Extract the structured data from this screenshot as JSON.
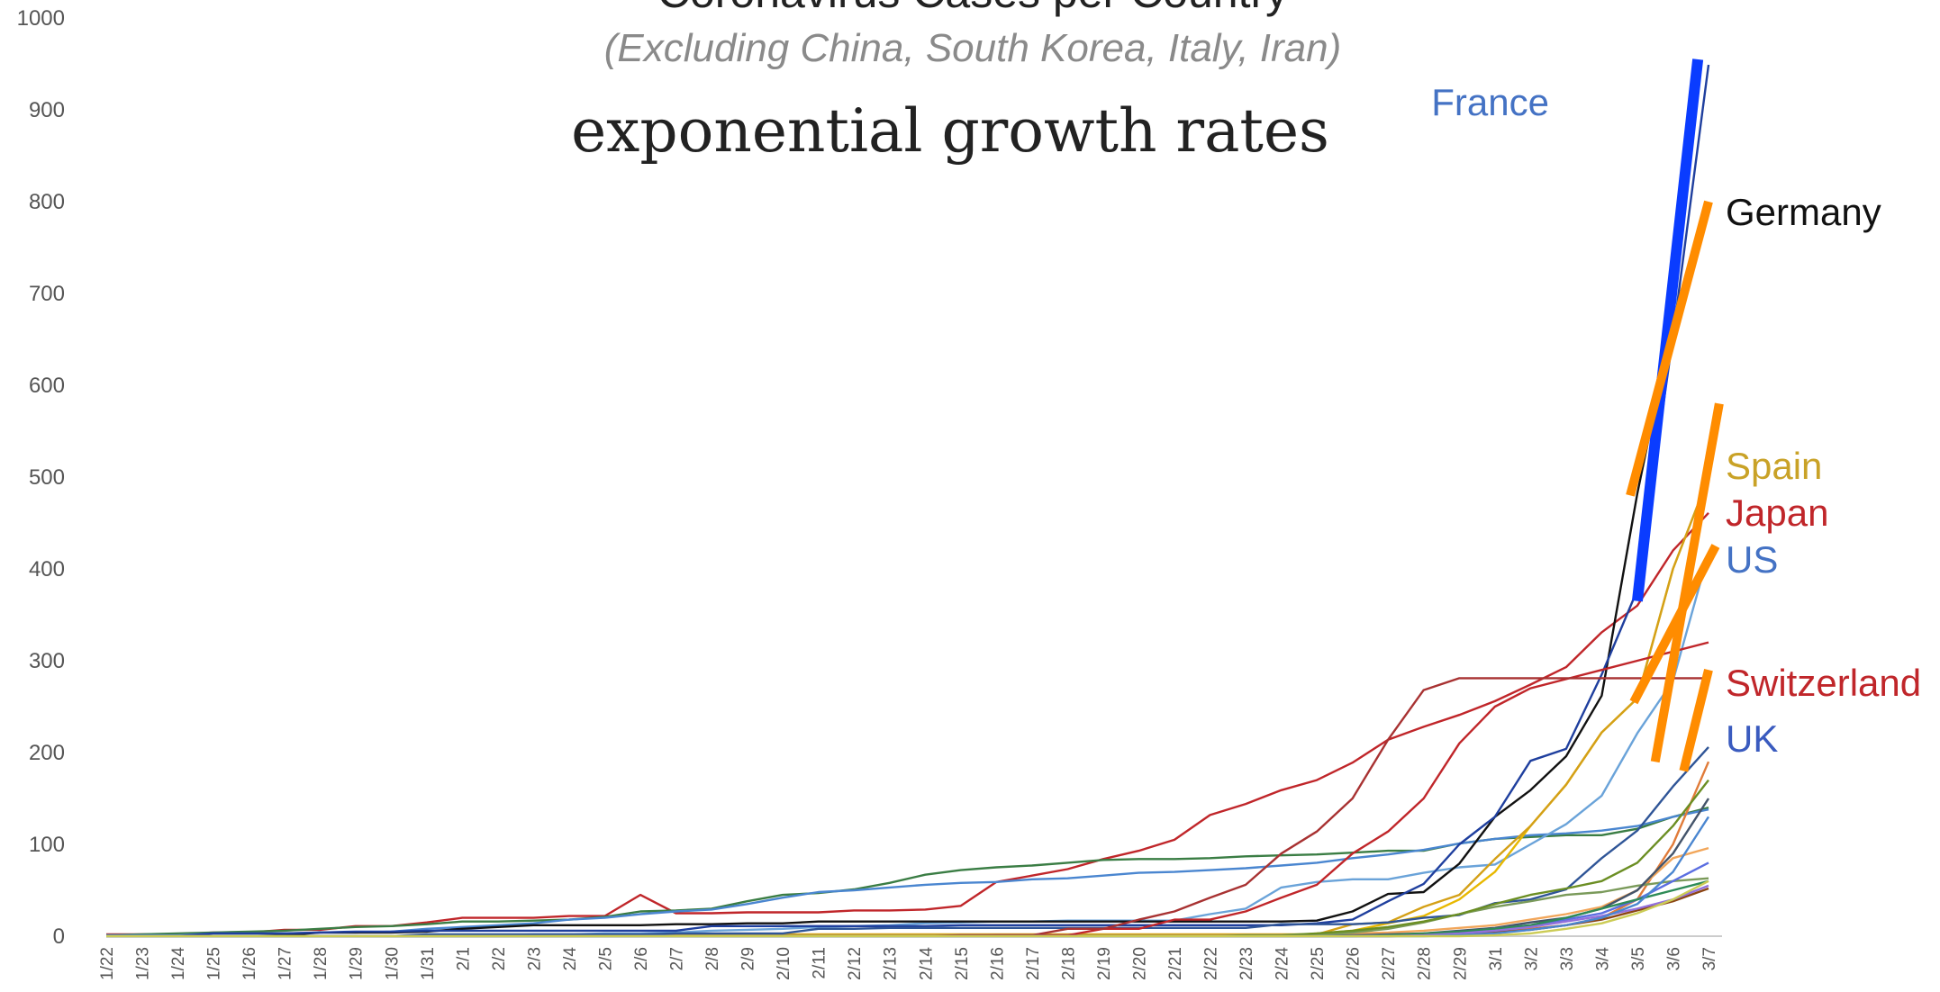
{
  "chart_data": {
    "type": "line",
    "title": "Coronavirus Cases per Country",
    "subtitle": "(Excluding China, South Korea, Italy, Iran)",
    "annotation": "exponential growth rates",
    "xlabel": "",
    "ylabel": "",
    "ylim": [
      0,
      1000
    ],
    "yticks": [
      0,
      100,
      200,
      300,
      400,
      500,
      600,
      700,
      800,
      900,
      1000
    ],
    "grid": false,
    "legend": "none",
    "categories": [
      "1/22",
      "1/23",
      "1/24",
      "1/25",
      "1/26",
      "1/27",
      "1/28",
      "1/29",
      "1/30",
      "1/31",
      "2/1",
      "2/2",
      "2/3",
      "2/4",
      "2/5",
      "2/6",
      "2/7",
      "2/8",
      "2/9",
      "2/10",
      "2/11",
      "2/12",
      "2/13",
      "2/14",
      "2/15",
      "2/16",
      "2/17",
      "2/18",
      "2/19",
      "2/20",
      "2/21",
      "2/22",
      "2/23",
      "2/24",
      "2/25",
      "2/26",
      "2/27",
      "2/28",
      "2/29",
      "3/1",
      "3/2",
      "3/3",
      "3/4",
      "3/5",
      "3/6",
      "3/7"
    ],
    "labeled_series": [
      {
        "name": "France",
        "color": "#4472c4"
      },
      {
        "name": "Germany",
        "color": "#111111"
      },
      {
        "name": "Spain",
        "color": "#c9a227"
      },
      {
        "name": "Japan",
        "color": "#c0262a"
      },
      {
        "name": "US",
        "color": "#4472c4"
      },
      {
        "name": "Switzerland",
        "color": "#c0262a"
      },
      {
        "name": "UK",
        "color": "#3a5bbf"
      }
    ],
    "series": [
      {
        "color": "#c0262a",
        "values": [
          2,
          2,
          2,
          4,
          4,
          7,
          7,
          11,
          11,
          15,
          20,
          20,
          20,
          22,
          22,
          45,
          25,
          25,
          26,
          26,
          26,
          28,
          28,
          29,
          33,
          59,
          66,
          73,
          84,
          93,
          105,
          132,
          144,
          159,
          170,
          189,
          214,
          228,
          241,
          256,
          274,
          293,
          331,
          360,
          420,
          461
        ]
      },
      {
        "color": "#3a7d44",
        "values": [
          1,
          2,
          3,
          4,
          5,
          6,
          8,
          10,
          11,
          13,
          16,
          16,
          17,
          18,
          21,
          27,
          28,
          30,
          38,
          45,
          47,
          51,
          58,
          67,
          72,
          75,
          77,
          80,
          83,
          84,
          84,
          85,
          87,
          88,
          89,
          91,
          93,
          93,
          101,
          106,
          108,
          110,
          110,
          117,
          130,
          140
        ]
      },
      {
        "color": "#4a86d0",
        "values": [
          1,
          1,
          1,
          3,
          3,
          3,
          4,
          4,
          5,
          8,
          10,
          12,
          14,
          18,
          20,
          24,
          27,
          29,
          35,
          42,
          48,
          50,
          53,
          56,
          58,
          59,
          62,
          63,
          66,
          69,
          70,
          72,
          74,
          77,
          80,
          85,
          89,
          94,
          101,
          106,
          110,
          112,
          115,
          120,
          130,
          138
        ]
      },
      {
        "color": "#6aa3d9",
        "values": [
          0,
          0,
          0,
          0,
          0,
          0,
          0,
          0,
          0,
          0,
          1,
          1,
          2,
          2,
          3,
          3,
          4,
          6,
          7,
          8,
          10,
          11,
          12,
          14,
          15,
          16,
          16,
          17,
          17,
          17,
          17,
          24,
          30,
          53,
          59,
          62,
          62,
          69,
          75,
          78,
          100,
          122,
          153,
          221,
          278,
          417
        ]
      },
      {
        "color": "#e8b800",
        "values": [
          0,
          0,
          0,
          0,
          0,
          0,
          0,
          0,
          0,
          0,
          0,
          0,
          0,
          0,
          0,
          0,
          0,
          0,
          0,
          0,
          0,
          0,
          0,
          0,
          0,
          0,
          0,
          0,
          0,
          0,
          0,
          0,
          0,
          0,
          3,
          6,
          14,
          22,
          40,
          70,
          120,
          165,
          222,
          259,
          400,
          500
        ]
      },
      {
        "color": "#d4a017",
        "values": [
          0,
          0,
          0,
          0,
          0,
          0,
          0,
          0,
          0,
          0,
          1,
          1,
          1,
          1,
          1,
          1,
          1,
          2,
          2,
          2,
          2,
          2,
          2,
          2,
          2,
          2,
          2,
          2,
          2,
          2,
          2,
          2,
          2,
          2,
          2,
          13,
          15,
          32,
          45,
          84,
          120,
          165,
          222,
          259,
          400,
          500
        ]
      },
      {
        "color": "#111111",
        "values": [
          0,
          0,
          0,
          0,
          0,
          1,
          4,
          4,
          4,
          5,
          8,
          10,
          12,
          12,
          12,
          12,
          13,
          13,
          14,
          14,
          16,
          16,
          16,
          16,
          16,
          16,
          16,
          16,
          16,
          16,
          16,
          16,
          16,
          16,
          17,
          27,
          46,
          48,
          79,
          130,
          159,
          196,
          262,
          482,
          670,
          799
        ]
      },
      {
        "color": "#1f3f9e",
        "values": [
          0,
          0,
          0,
          3,
          3,
          3,
          4,
          5,
          5,
          6,
          6,
          6,
          6,
          6,
          6,
          6,
          6,
          11,
          11,
          11,
          11,
          11,
          11,
          11,
          12,
          12,
          12,
          12,
          12,
          12,
          12,
          12,
          12,
          12,
          14,
          18,
          38,
          57,
          100,
          130,
          191,
          204,
          285,
          377,
          653,
          949
        ]
      },
      {
        "color": "#2f5597",
        "values": [
          0,
          0,
          0,
          0,
          0,
          0,
          0,
          0,
          0,
          2,
          2,
          2,
          2,
          2,
          2,
          2,
          3,
          3,
          3,
          3,
          8,
          8,
          9,
          9,
          9,
          9,
          9,
          9,
          9,
          9,
          9,
          9,
          9,
          13,
          13,
          13,
          15,
          20,
          23,
          36,
          40,
          51,
          85,
          115,
          163,
          206
        ]
      },
      {
        "color": "#c0262a",
        "values": [
          0,
          0,
          0,
          0,
          0,
          0,
          0,
          0,
          0,
          0,
          0,
          0,
          0,
          0,
          0,
          0,
          0,
          0,
          0,
          0,
          0,
          0,
          0,
          0,
          0,
          1,
          1,
          1,
          8,
          8,
          18,
          18,
          27,
          42,
          56,
          90,
          114,
          150,
          210,
          250,
          270,
          280,
          290,
          300,
          310,
          320
        ]
      },
      {
        "color": "#a83232",
        "values": [
          0,
          0,
          0,
          0,
          0,
          0,
          0,
          0,
          0,
          0,
          0,
          0,
          0,
          0,
          0,
          0,
          0,
          0,
          0,
          0,
          0,
          0,
          0,
          0,
          1,
          1,
          1,
          8,
          8,
          18,
          27,
          42,
          56,
          90,
          114,
          150,
          214,
          268,
          281,
          281,
          281,
          281,
          281,
          281,
          281,
          281
        ]
      },
      {
        "color": "#e07b39",
        "values": [
          0,
          0,
          0,
          0,
          0,
          0,
          0,
          0,
          0,
          0,
          0,
          0,
          0,
          0,
          0,
          0,
          0,
          0,
          0,
          0,
          0,
          0,
          0,
          0,
          0,
          0,
          0,
          0,
          0,
          0,
          0,
          0,
          0,
          1,
          1,
          1,
          1,
          2,
          3,
          5,
          8,
          12,
          20,
          40,
          100,
          190
        ]
      },
      {
        "color": "#f2a65a",
        "values": [
          0,
          0,
          0,
          0,
          0,
          0,
          0,
          0,
          0,
          0,
          0,
          0,
          0,
          0,
          0,
          0,
          0,
          0,
          0,
          0,
          0,
          0,
          0,
          0,
          0,
          0,
          0,
          0,
          0,
          0,
          0,
          0,
          1,
          1,
          2,
          3,
          4,
          6,
          9,
          12,
          18,
          24,
          32,
          50,
          85,
          96
        ]
      },
      {
        "color": "#7a9a5a",
        "values": [
          0,
          0,
          0,
          0,
          0,
          0,
          0,
          0,
          0,
          0,
          0,
          0,
          0,
          0,
          0,
          0,
          0,
          0,
          0,
          0,
          0,
          0,
          0,
          0,
          0,
          0,
          0,
          0,
          0,
          0,
          0,
          0,
          0,
          0,
          1,
          4,
          8,
          15,
          24,
          32,
          38,
          45,
          48,
          55,
          60,
          63
        ]
      },
      {
        "color": "#6b8e23",
        "values": [
          0,
          0,
          0,
          0,
          0,
          0,
          0,
          0,
          0,
          0,
          0,
          0,
          0,
          0,
          0,
          0,
          0,
          0,
          0,
          0,
          0,
          0,
          0,
          0,
          0,
          0,
          0,
          0,
          0,
          0,
          0,
          0,
          1,
          1,
          3,
          6,
          10,
          16,
          24,
          35,
          45,
          52,
          60,
          80,
          120,
          170
        ]
      },
      {
        "color": "#44546a",
        "values": [
          0,
          0,
          0,
          0,
          0,
          0,
          0,
          0,
          0,
          0,
          0,
          0,
          0,
          0,
          0,
          0,
          0,
          0,
          0,
          0,
          0,
          0,
          0,
          0,
          0,
          0,
          0,
          0,
          0,
          0,
          0,
          0,
          0,
          0,
          0,
          1,
          2,
          3,
          6,
          9,
          15,
          20,
          30,
          50,
          90,
          150
        ]
      },
      {
        "color": "#5b6ee1",
        "values": [
          0,
          0,
          0,
          0,
          0,
          0,
          0,
          0,
          0,
          0,
          0,
          0,
          0,
          0,
          0,
          0,
          0,
          0,
          0,
          0,
          0,
          0,
          0,
          0,
          0,
          0,
          0,
          0,
          0,
          0,
          0,
          0,
          0,
          0,
          0,
          0,
          1,
          2,
          4,
          8,
          12,
          18,
          25,
          40,
          60,
          80
        ]
      },
      {
        "color": "#2e8b57",
        "values": [
          0,
          0,
          0,
          0,
          0,
          0,
          0,
          0,
          0,
          0,
          0,
          0,
          0,
          0,
          0,
          0,
          0,
          0,
          0,
          0,
          0,
          0,
          0,
          0,
          0,
          0,
          0,
          0,
          0,
          0,
          0,
          0,
          0,
          0,
          0,
          0,
          1,
          3,
          5,
          8,
          12,
          20,
          30,
          40,
          50,
          60
        ]
      },
      {
        "color": "#8b4513",
        "values": [
          0,
          0,
          0,
          0,
          0,
          0,
          0,
          0,
          0,
          0,
          0,
          0,
          0,
          0,
          0,
          0,
          0,
          0,
          0,
          0,
          0,
          0,
          0,
          0,
          0,
          0,
          0,
          0,
          0,
          0,
          0,
          0,
          0,
          0,
          0,
          0,
          0,
          1,
          2,
          4,
          7,
          12,
          18,
          28,
          38,
          52
        ]
      },
      {
        "color": "#9370db",
        "values": [
          0,
          0,
          0,
          0,
          0,
          0,
          0,
          0,
          0,
          0,
          0,
          0,
          0,
          0,
          0,
          0,
          0,
          0,
          0,
          0,
          0,
          0,
          0,
          0,
          0,
          0,
          0,
          0,
          0,
          0,
          0,
          0,
          0,
          0,
          0,
          0,
          0,
          1,
          3,
          6,
          10,
          16,
          22,
          30,
          40,
          55
        ]
      },
      {
        "color": "#4a86d0",
        "values": [
          0,
          0,
          0,
          0,
          0,
          0,
          0,
          0,
          0,
          0,
          0,
          0,
          0,
          0,
          0,
          0,
          0,
          0,
          0,
          0,
          0,
          0,
          0,
          0,
          0,
          0,
          0,
          0,
          0,
          0,
          0,
          0,
          0,
          0,
          0,
          0,
          0,
          0,
          1,
          3,
          7,
          12,
          20,
          35,
          70,
          130
        ]
      },
      {
        "color": "#cccc55",
        "values": [
          0,
          0,
          0,
          0,
          0,
          0,
          0,
          0,
          0,
          0,
          0,
          0,
          0,
          0,
          0,
          0,
          0,
          0,
          0,
          0,
          0,
          0,
          0,
          0,
          0,
          0,
          0,
          0,
          0,
          0,
          0,
          0,
          0,
          0,
          0,
          0,
          0,
          0,
          0,
          1,
          3,
          8,
          14,
          25,
          40,
          60
        ]
      }
    ],
    "trend_segments": [
      {
        "color": "#0a3cff",
        "width": 12,
        "from": [
          43.0,
          365
        ],
        "to": [
          44.7,
          955
        ]
      },
      {
        "color": "#ff8c00",
        "width": 10,
        "from": [
          42.8,
          480
        ],
        "to": [
          45.0,
          800
        ]
      },
      {
        "color": "#ff8c00",
        "width": 10,
        "from": [
          43.5,
          190
        ],
        "to": [
          45.3,
          580
        ]
      },
      {
        "color": "#ff8c00",
        "width": 10,
        "from": [
          42.9,
          255
        ],
        "to": [
          45.2,
          425
        ]
      },
      {
        "color": "#ff8c00",
        "width": 10,
        "from": [
          44.3,
          180
        ],
        "to": [
          45.0,
          290
        ]
      }
    ]
  }
}
